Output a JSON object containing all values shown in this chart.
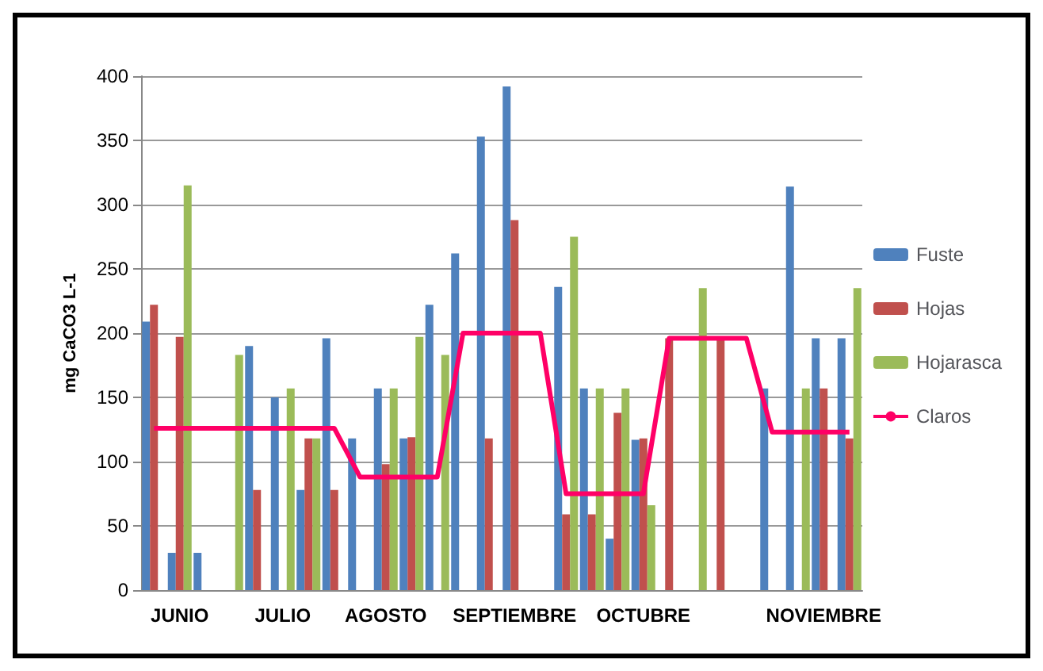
{
  "chart_data": {
    "type": "bar",
    "ylabel": "mg CaCO3 L-1",
    "categories": [
      null,
      "JUNIO",
      null,
      null,
      null,
      "JULIO",
      null,
      null,
      null,
      "AGOSTO",
      null,
      null,
      null,
      null,
      "SEPTIEMBRE",
      null,
      null,
      null,
      null,
      "OCTUBRE",
      null,
      null,
      null,
      null,
      null,
      null,
      "NOVIEMBRE",
      null
    ],
    "series": [
      {
        "name": "Fuste",
        "color": "#4f81bd",
        "values": [
          209,
          29,
          29,
          null,
          190,
          150,
          78,
          196,
          118,
          157,
          118,
          222,
          262,
          353,
          392,
          null,
          236,
          157,
          40,
          117,
          null,
          null,
          null,
          null,
          157,
          314,
          196,
          196
        ]
      },
      {
        "name": "Hojas",
        "color": "#c0504d",
        "values": [
          222,
          197,
          null,
          null,
          78,
          null,
          118,
          78,
          null,
          98,
          119,
          null,
          null,
          118,
          288,
          null,
          59,
          59,
          138,
          118,
          196,
          null,
          196,
          null,
          null,
          null,
          157,
          118
        ]
      },
      {
        "name": "Hojarasca",
        "color": "#9bbb59",
        "values": [
          null,
          315,
          null,
          183,
          null,
          157,
          118,
          null,
          null,
          157,
          197,
          183,
          null,
          null,
          null,
          null,
          275,
          157,
          157,
          66,
          null,
          235,
          null,
          null,
          null,
          157,
          null,
          235
        ]
      },
      {
        "name": "Claros",
        "type": "line",
        "color": "#ff0066",
        "values": [
          126,
          126,
          126,
          126,
          126,
          126,
          126,
          126,
          88,
          88,
          88,
          88,
          200,
          200,
          200,
          200,
          75,
          75,
          75,
          75,
          196,
          196,
          196,
          196,
          123,
          123,
          123,
          123
        ]
      }
    ],
    "ylim": [
      0,
      400
    ],
    "yticks": [
      0,
      50,
      100,
      150,
      200,
      250,
      300,
      350,
      400
    ],
    "grid": "y",
    "legend": "right",
    "marker": "none",
    "line_style": "solid"
  }
}
